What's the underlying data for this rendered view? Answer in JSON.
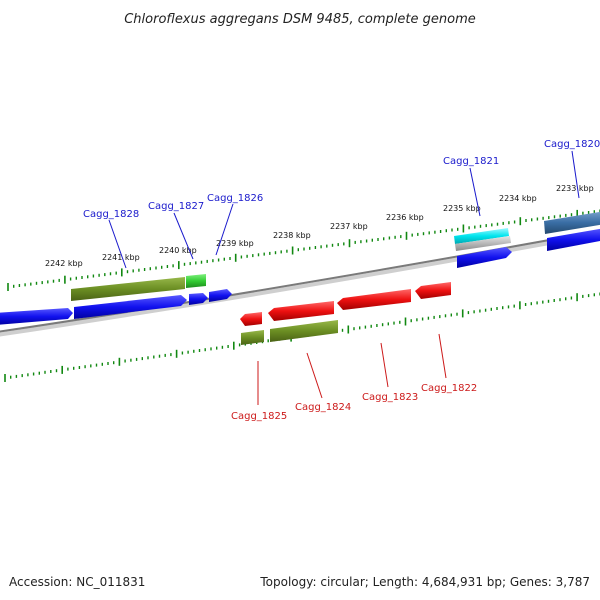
{
  "title": "Chloroflexus aggregans DSM 9485, complete genome",
  "footer": {
    "accession": "Accession: NC_011831",
    "summary": "Topology: circular; Length: 4,684,931 bp; Genes: 3,787"
  },
  "scale_labels": [
    "2242 kbp",
    "2241 kbp",
    "2240 kbp",
    "2239 kbp",
    "2238 kbp",
    "2237 kbp",
    "2236 kbp",
    "2235 kbp",
    "2234 kbp",
    "2233 kbp"
  ],
  "gene_labels_top": [
    "Cagg_1828",
    "Cagg_1827",
    "Cagg_1826",
    "Cagg_1821",
    "Cagg_1820"
  ],
  "gene_labels_bottom": [
    "Cagg_1825",
    "Cagg_1824",
    "Cagg_1823",
    "Cagg_1822"
  ],
  "colors": {
    "cds_forward": "#1111ee",
    "cds_reverse": "#ee1111",
    "gene_olive": "#6b8e23",
    "gene_green": "#33cc33",
    "gene_cyan": "#00e5ee",
    "gene_grey": "#b8b8b8",
    "gene_steel": "#3a6ea5",
    "backbone": "#808080",
    "ticks": "#118811",
    "label_top": "#1a1acc",
    "label_bottom": "#cc1a1a"
  }
}
